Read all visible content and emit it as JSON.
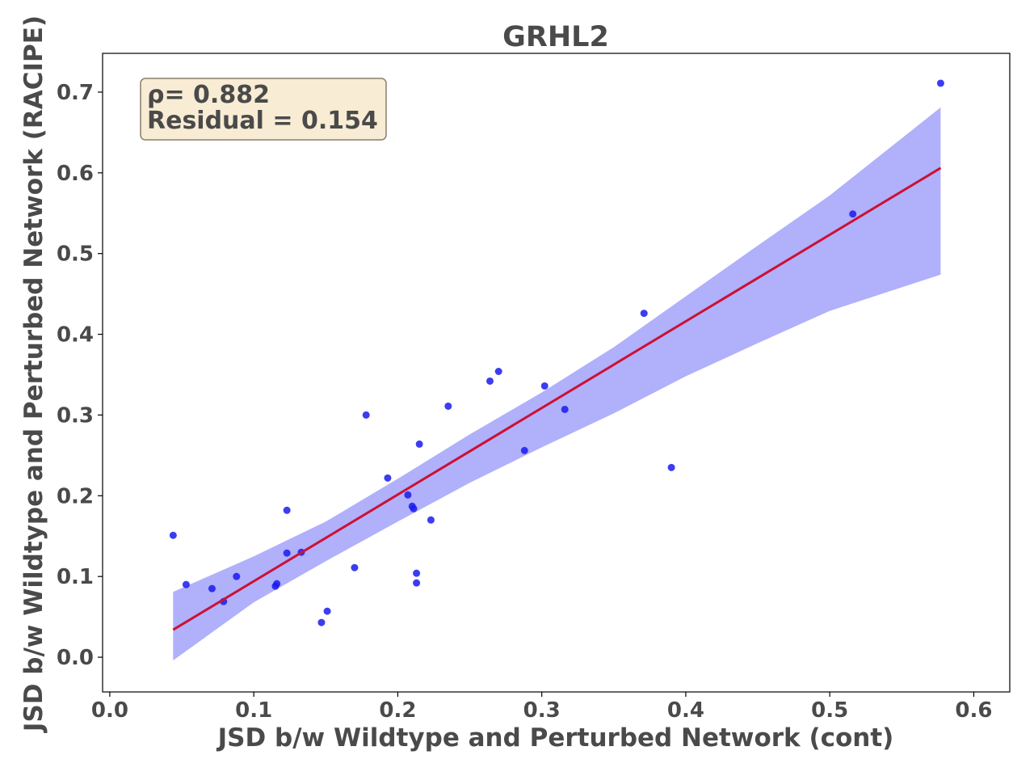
{
  "chart_data": {
    "type": "scatter",
    "title": "GRHL2",
    "xlabel": "JSD b/w Wildtype and Perturbed Network (cont)",
    "ylabel": "JSD b/w Wildtype and Perturbed Network (RACIPE)",
    "xlim": [
      -0.005,
      0.625
    ],
    "ylim": [
      -0.043,
      0.748
    ],
    "xticks": [
      "0.0",
      "0.1",
      "0.2",
      "0.3",
      "0.4",
      "0.5",
      "0.6"
    ],
    "xtick_values": [
      0.0,
      0.1,
      0.2,
      0.3,
      0.4,
      0.5,
      0.6
    ],
    "yticks": [
      "0.0",
      "0.1",
      "0.2",
      "0.3",
      "0.4",
      "0.5",
      "0.6",
      "0.7"
    ],
    "ytick_values": [
      0.0,
      0.1,
      0.2,
      0.3,
      0.4,
      0.5,
      0.6,
      0.7
    ],
    "grid": false,
    "points": [
      [
        0.044,
        0.151
      ],
      [
        0.053,
        0.09
      ],
      [
        0.071,
        0.085
      ],
      [
        0.079,
        0.069
      ],
      [
        0.088,
        0.1
      ],
      [
        0.115,
        0.088
      ],
      [
        0.116,
        0.091
      ],
      [
        0.123,
        0.129
      ],
      [
        0.123,
        0.182
      ],
      [
        0.133,
        0.13
      ],
      [
        0.147,
        0.043
      ],
      [
        0.151,
        0.057
      ],
      [
        0.17,
        0.111
      ],
      [
        0.178,
        0.3
      ],
      [
        0.193,
        0.222
      ],
      [
        0.207,
        0.201
      ],
      [
        0.21,
        0.187
      ],
      [
        0.211,
        0.184
      ],
      [
        0.213,
        0.104
      ],
      [
        0.213,
        0.092
      ],
      [
        0.215,
        0.264
      ],
      [
        0.223,
        0.17
      ],
      [
        0.235,
        0.311
      ],
      [
        0.264,
        0.342
      ],
      [
        0.27,
        0.354
      ],
      [
        0.288,
        0.256
      ],
      [
        0.302,
        0.336
      ],
      [
        0.316,
        0.307
      ],
      [
        0.371,
        0.426
      ],
      [
        0.39,
        0.235
      ],
      [
        0.516,
        0.549
      ],
      [
        0.577,
        0.711
      ]
    ],
    "fit_line": {
      "x": [
        0.044,
        0.577
      ],
      "y": [
        0.034,
        0.606
      ]
    },
    "confidence_band": {
      "x": [
        0.044,
        0.1,
        0.15,
        0.2,
        0.25,
        0.3,
        0.35,
        0.4,
        0.45,
        0.5,
        0.577
      ],
      "upper": [
        0.081,
        0.125,
        0.168,
        0.221,
        0.276,
        0.328,
        0.384,
        0.447,
        0.51,
        0.572,
        0.681
      ],
      "lower": [
        -0.004,
        0.068,
        0.119,
        0.168,
        0.216,
        0.26,
        0.302,
        0.348,
        0.389,
        0.429,
        0.474
      ]
    },
    "annotation": [
      "ρ= 0.882",
      "Residual = 0.154"
    ],
    "annotation_placement": "top-left",
    "colors": {
      "points": "#1a1aee",
      "fit_line": "#cc1133",
      "band": "#b0b0fb",
      "annotation_bg": "#f8ecd4",
      "annotation_border": "#8a7d6b",
      "text": "#4a4a4a"
    }
  }
}
